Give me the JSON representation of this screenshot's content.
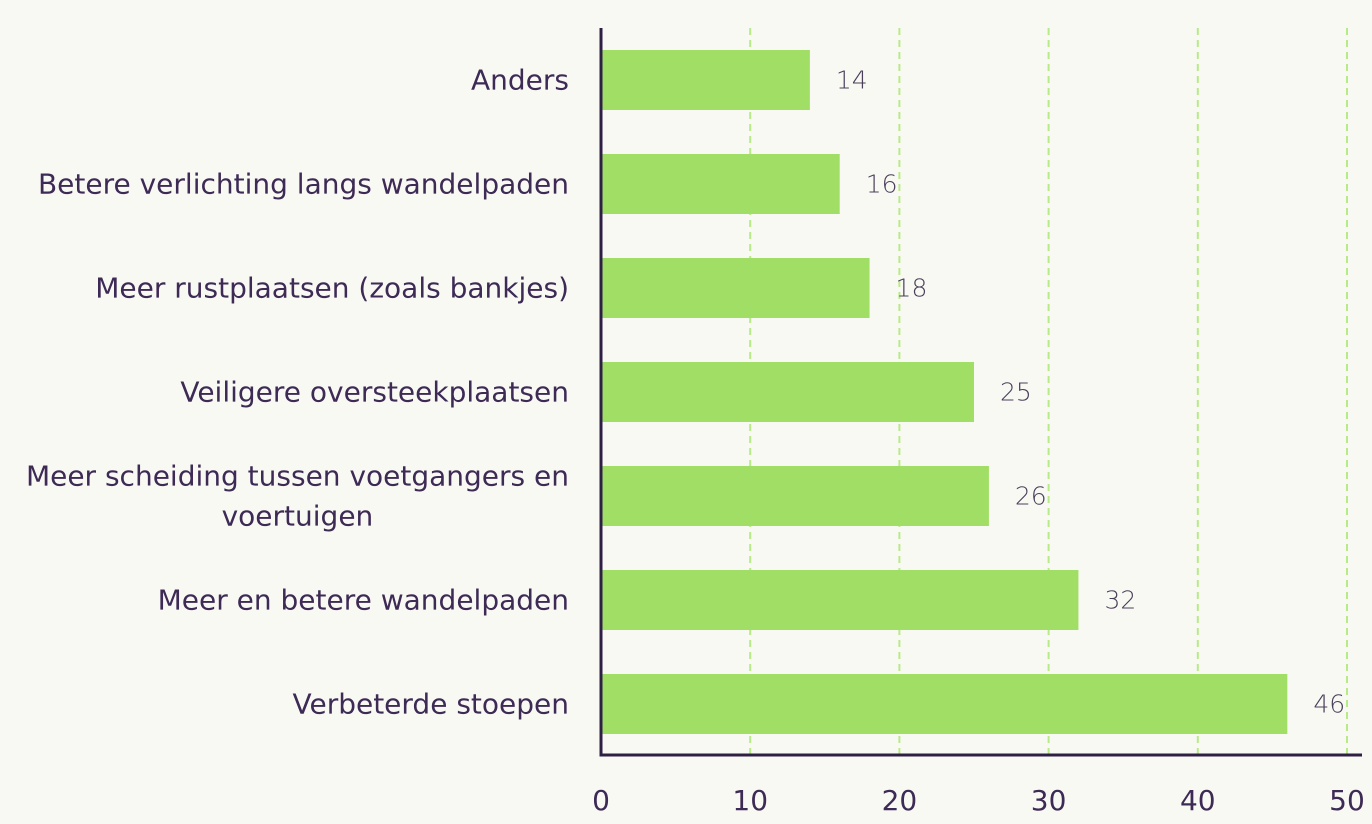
{
  "chart_data": {
    "type": "bar",
    "orientation": "horizontal",
    "categories": [
      [
        "Anders"
      ],
      [
        "Betere verlichting langs wandelpaden"
      ],
      [
        "Meer rustplaatsen (zoals bankjes)"
      ],
      [
        "Veiligere oversteekplaatsen"
      ],
      [
        "Meer scheiding tussen voetgangers en",
        "voertuigen"
      ],
      [
        "Meer en betere wandelpaden"
      ],
      [
        "Verbeterde stoepen"
      ]
    ],
    "values": [
      14,
      16,
      18,
      25,
      26,
      32,
      46
    ],
    "xlim": [
      0,
      50
    ],
    "xticks": [
      0,
      10,
      20,
      30,
      40,
      50
    ],
    "xtick_labels": [
      "0",
      "10",
      "20",
      "30",
      "40",
      "50"
    ],
    "grid": "vertical dashed",
    "data_labels": true,
    "colors": {
      "bar": "#a1de66",
      "grid": "#b9ea8a",
      "axis": "#2e1f45",
      "text": "#3d2a55",
      "background": "#f9f9f4"
    }
  }
}
